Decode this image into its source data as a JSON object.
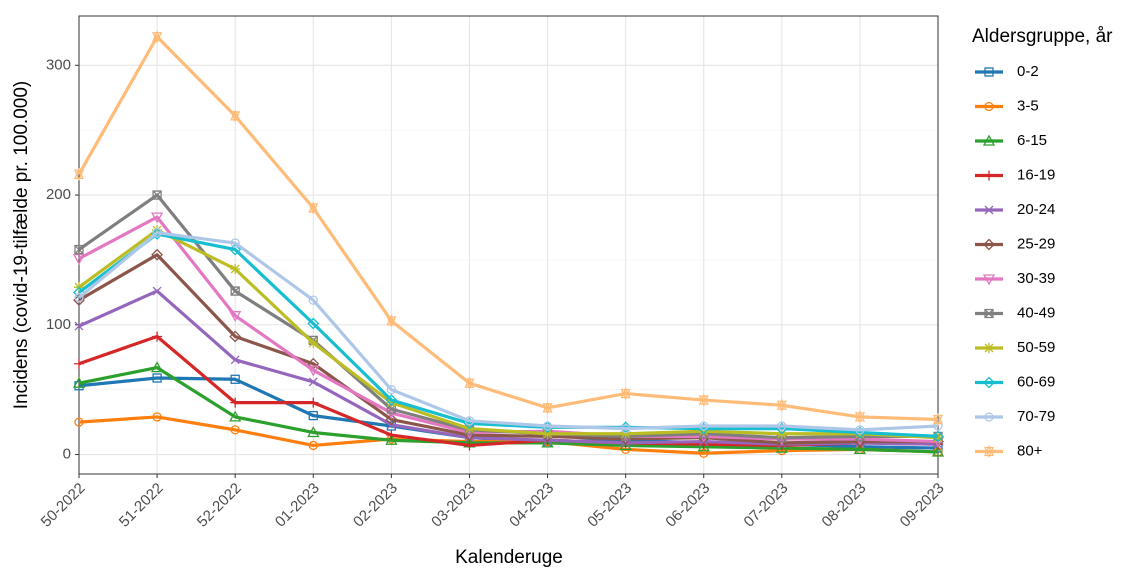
{
  "chart_data": {
    "type": "line",
    "x_label": "Kalenderuge",
    "y_label": "Incidens (covid-19-tilfælde pr. 100.000)",
    "legend_title": "Aldersgruppe, år",
    "legend": "right",
    "grid": true,
    "categories": [
      "50-2022",
      "51-2022",
      "52-2022",
      "01-2023",
      "02-2023",
      "03-2023",
      "04-2023",
      "05-2023",
      "06-2023",
      "07-2023",
      "08-2023",
      "09-2023"
    ],
    "ylim": [
      -15,
      338
    ],
    "yticks": [
      0,
      100,
      200,
      300
    ],
    "y_minor_grid": [
      50,
      150,
      250
    ],
    "series": [
      {
        "name": "0-2",
        "color": "#1f77b4",
        "marker": "square",
        "values": [
          53,
          59,
          58,
          30,
          22,
          13,
          10,
          11,
          9,
          8,
          6,
          5
        ]
      },
      {
        "name": "3-5",
        "color": "#ff7f0e",
        "marker": "circle",
        "values": [
          25,
          29,
          19,
          7,
          12,
          10,
          10,
          4,
          1,
          3,
          4,
          2
        ]
      },
      {
        "name": "6-15",
        "color": "#2ca02c",
        "marker": "triangle",
        "values": [
          55,
          67,
          29,
          17,
          11,
          9,
          9,
          7,
          6,
          5,
          4,
          2
        ]
      },
      {
        "name": "16-19",
        "color": "#d62728",
        "marker": "plus",
        "values": [
          70,
          91,
          40,
          40,
          15,
          7,
          11,
          9,
          8,
          7,
          9,
          8
        ]
      },
      {
        "name": "20-24",
        "color": "#9467bd",
        "marker": "x",
        "values": [
          99,
          126,
          73,
          56,
          23,
          13,
          11,
          9,
          10,
          8,
          9,
          8
        ]
      },
      {
        "name": "25-29",
        "color": "#8c564b",
        "marker": "diamond",
        "values": [
          119,
          154,
          91,
          70,
          27,
          15,
          14,
          12,
          13,
          9,
          10,
          10
        ]
      },
      {
        "name": "30-39",
        "color": "#e377c2",
        "marker": "triangle-down",
        "values": [
          151,
          183,
          107,
          65,
          32,
          17,
          18,
          14,
          14,
          12,
          12,
          10
        ]
      },
      {
        "name": "40-49",
        "color": "#7f7f7f",
        "marker": "square-x",
        "values": [
          158,
          200,
          126,
          88,
          35,
          19,
          16,
          14,
          16,
          13,
          14,
          14
        ]
      },
      {
        "name": "50-59",
        "color": "#bcbd22",
        "marker": "asterisk",
        "values": [
          129,
          173,
          143,
          86,
          40,
          20,
          16,
          16,
          18,
          16,
          16,
          13
        ]
      },
      {
        "name": "60-69",
        "color": "#17becf",
        "marker": "diamond",
        "values": [
          125,
          170,
          158,
          101,
          42,
          24,
          21,
          21,
          20,
          20,
          17,
          14
        ]
      },
      {
        "name": "70-79",
        "color": "#aec7e8",
        "marker": "circle",
        "values": [
          121,
          171,
          163,
          119,
          50,
          26,
          22,
          20,
          22,
          22,
          19,
          22
        ]
      },
      {
        "name": "80+",
        "color": "#ffbb78",
        "marker": "star",
        "values": [
          216,
          322,
          261,
          190,
          103,
          55,
          36,
          47,
          42,
          38,
          29,
          27
        ]
      }
    ]
  }
}
